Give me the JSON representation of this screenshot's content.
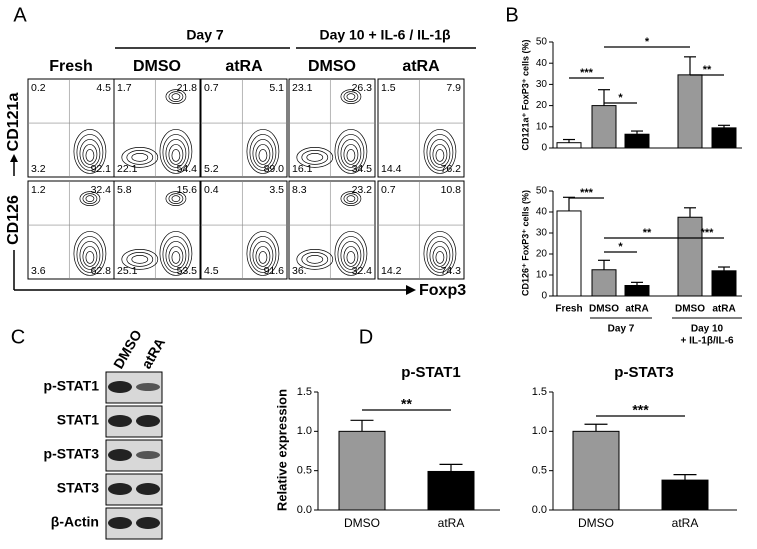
{
  "panel_a": {
    "label": "A",
    "groups": [
      "Day 7",
      "Day 10 + IL-6 / IL-1β"
    ],
    "columns": [
      "Fresh",
      "DMSO",
      "atRA",
      "DMSO",
      "atRA"
    ],
    "markers": [
      "CD121a",
      "CD126"
    ],
    "x_marker": "Foxp3",
    "quadrants": [
      [
        [
          "0.2",
          "4.5",
          "3.2",
          "92.1"
        ],
        [
          "1.7",
          "21.8",
          "22.1",
          "54.4"
        ],
        [
          "0.7",
          "5.1",
          "5.2",
          "89.0"
        ],
        [
          "23.1",
          "26.3",
          "16.1",
          "34.5"
        ],
        [
          "1.5",
          "7.9",
          "14.4",
          "76.2"
        ]
      ],
      [
        [
          "1.2",
          "32.4",
          "3.6",
          "62.8"
        ],
        [
          "5.8",
          "15.6",
          "25.1",
          "53.5"
        ],
        [
          "0.4",
          "3.5",
          "4.5",
          "91.6"
        ],
        [
          "8.3",
          "23.2",
          "36.",
          "32.4"
        ],
        [
          "0.7",
          "10.8",
          "14.2",
          "74.3"
        ]
      ]
    ]
  },
  "panel_b": {
    "label": "B",
    "categories": [
      "Fresh",
      "DMSO",
      "atRA",
      "DMSO",
      "atRA"
    ],
    "groups": [
      "Day 7",
      "Day 10",
      "+ IL-1β/IL-6"
    ],
    "colors": [
      "#ffffff",
      "#999999",
      "#000000",
      "#999999",
      "#000000"
    ],
    "charts": [
      {
        "y_label": "CD121a⁺ FoxP3⁺ cells (%)",
        "values": [
          2.5,
          20,
          6.5,
          34.5,
          9.5
        ],
        "errors": [
          1.5,
          7.5,
          1.5,
          8.5,
          1.2
        ],
        "ylim": [
          0,
          50
        ],
        "yticks": [
          0,
          10,
          20,
          30,
          40,
          50
        ],
        "significance": [
          "***",
          "*",
          "*",
          "**"
        ]
      },
      {
        "y_label": "CD126⁺ FoxP3⁺ cells (%)",
        "values": [
          40.5,
          12.5,
          5,
          37.5,
          12
        ],
        "errors": [
          6.5,
          4.5,
          1.5,
          4.5,
          1.8
        ],
        "ylim": [
          0,
          50
        ],
        "yticks": [
          0,
          10,
          20,
          30,
          40,
          50
        ],
        "significance": [
          "***",
          "*",
          "**",
          "***"
        ]
      }
    ]
  },
  "panel_c": {
    "label": "C",
    "columns": [
      "DMSO",
      "atRA"
    ],
    "rows": [
      "p-STAT1",
      "STAT1",
      "p-STAT3",
      "STAT3",
      "β-Actin"
    ]
  },
  "panel_d": {
    "label": "D",
    "categories": [
      "DMSO",
      "atRA"
    ],
    "colors": [
      "#999999",
      "#000000"
    ],
    "y_label": "Relative expression",
    "charts": [
      {
        "title": "p-STAT1",
        "values": [
          1.0,
          0.49
        ],
        "errors": [
          0.14,
          0.09
        ],
        "ylim": [
          0,
          1.5
        ],
        "yticks": [
          {
            "value": 0,
            "label": "0.0"
          },
          {
            "value": 0.5,
            "label": "0.5"
          },
          {
            "value": 1,
            "label": "1.0"
          },
          {
            "value": 1.5,
            "label": "1.5"
          }
        ],
        "significance": [
          "**"
        ]
      },
      {
        "title": "p-STAT3",
        "values": [
          1.0,
          0.38
        ],
        "errors": [
          0.09,
          0.07
        ],
        "ylim": [
          0,
          1.5
        ],
        "yticks": [
          {
            "value": 0,
            "label": "0.0"
          },
          {
            "value": 0.5,
            "label": "0.5"
          },
          {
            "value": 1,
            "label": "1.0"
          },
          {
            "value": 1.5,
            "label": "1.5"
          }
        ],
        "significance": [
          "***"
        ]
      }
    ]
  }
}
